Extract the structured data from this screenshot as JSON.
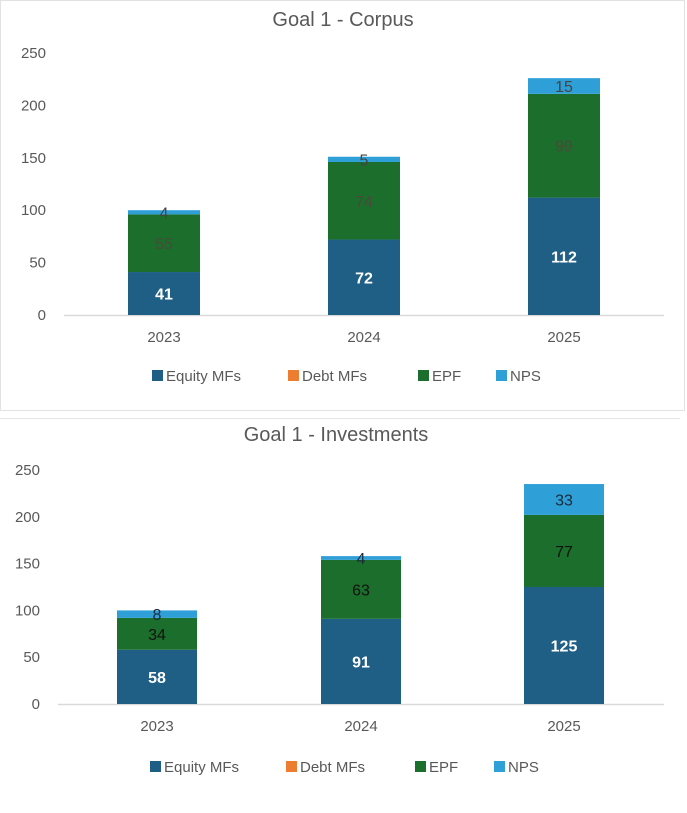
{
  "chart_data": [
    {
      "type": "bar",
      "stacked": true,
      "title": "Goal 1 - Corpus",
      "categories": [
        "2023",
        "2024",
        "2025"
      ],
      "ylim": [
        0,
        250
      ],
      "yticks": [
        0,
        50,
        100,
        150,
        200,
        250
      ],
      "grid": false,
      "legend_position": "bottom",
      "series": [
        {
          "name": "Equity MFs",
          "color": "#1f5f86",
          "label_color": "#ffffff",
          "values": [
            41,
            72,
            112
          ]
        },
        {
          "name": "Debt MFs",
          "color": "#ed7d31",
          "label_color": "#333333",
          "values": [
            0,
            0,
            0
          ]
        },
        {
          "name": "EPF",
          "color": "#1b6e2b",
          "label_color": "#4a4a3a",
          "values": [
            55,
            74,
            99
          ]
        },
        {
          "name": "NPS",
          "color": "#2f9fd8",
          "label_color": "#444444",
          "values": [
            4,
            5,
            15
          ]
        }
      ]
    },
    {
      "type": "bar",
      "stacked": true,
      "title": "Goal 1 - Investments",
      "categories": [
        "2023",
        "2024",
        "2025"
      ],
      "ylim": [
        0,
        250
      ],
      "yticks": [
        0,
        50,
        100,
        150,
        200,
        250
      ],
      "grid": false,
      "legend_position": "bottom",
      "series": [
        {
          "name": "Equity MFs",
          "color": "#1f5f86",
          "label_color": "#ffffff",
          "values": [
            58,
            91,
            125
          ]
        },
        {
          "name": "Debt MFs",
          "color": "#ed7d31",
          "label_color": "#333333",
          "values": [
            0,
            0,
            0
          ]
        },
        {
          "name": "EPF",
          "color": "#1b6e2b",
          "label_color": "#111111",
          "values": [
            34,
            63,
            77
          ]
        },
        {
          "name": "NPS",
          "color": "#2f9fd8",
          "label_color": "#1a2a3a",
          "values": [
            8,
            4,
            33
          ]
        }
      ]
    }
  ]
}
